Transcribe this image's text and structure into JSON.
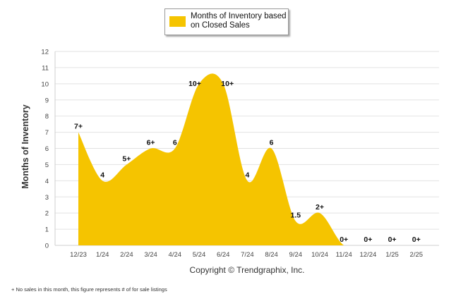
{
  "chart_data": {
    "type": "area",
    "legend": {
      "label": "Months of Inventory based on Closed Sales",
      "position": "top-center"
    },
    "ylabel": "Months of Inventory",
    "ylim": [
      0,
      12
    ],
    "yticks": [
      "0",
      "1",
      "2",
      "3",
      "4",
      "5",
      "6",
      "7",
      "8",
      "9",
      "10",
      "11",
      "12"
    ],
    "grid": true,
    "categories": [
      "12/23",
      "1/24",
      "2/24",
      "3/24",
      "4/24",
      "5/24",
      "6/24",
      "7/24",
      "8/24",
      "9/24",
      "10/24",
      "11/24",
      "12/24",
      "1/25",
      "2/25"
    ],
    "series": [
      {
        "name": "Months of Inventory based on Closed Sales",
        "color": "#f5c400",
        "values": [
          7,
          4,
          5,
          6,
          6,
          10,
          10,
          4,
          6,
          1.5,
          2,
          0,
          0,
          0,
          0
        ],
        "labels": [
          "7+",
          "4",
          "5+",
          "6+",
          "6",
          "10+",
          "10+",
          "4",
          "6",
          "1.5",
          "2+",
          "0+",
          "0+",
          "0+",
          "0+"
        ]
      }
    ]
  },
  "copyright": "Copyright © Trendgraphix, Inc.",
  "footnote": "+  No sales in this month, this figure represents # of for sale listings"
}
